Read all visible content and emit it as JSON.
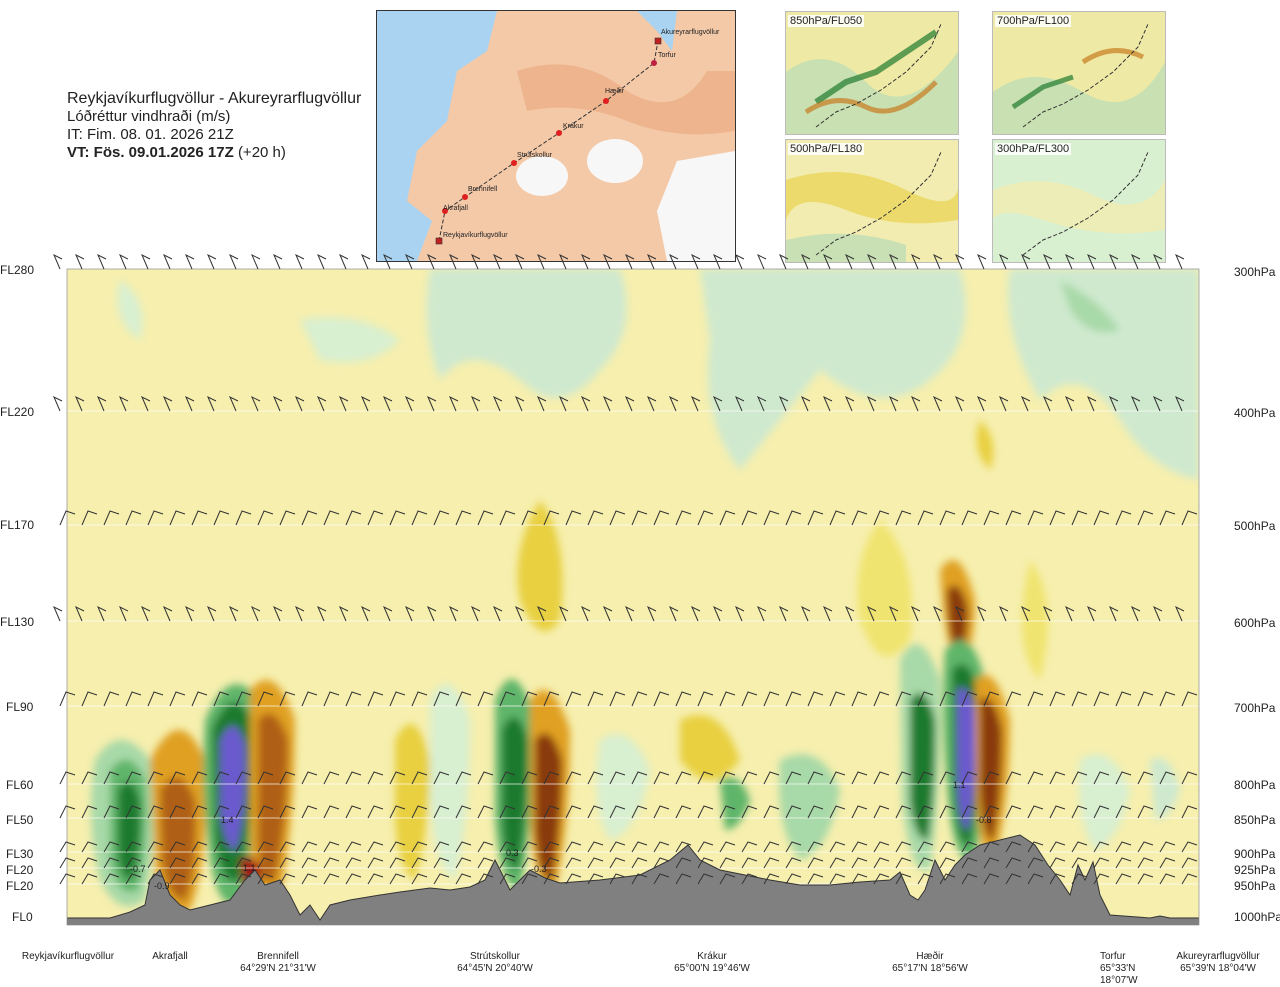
{
  "header": {
    "route": "Reykjavíkurflugvöllur - Akureyrarflugvöllur",
    "subtitle": "Lóðréttur vindhraði (m/s)",
    "issue_time": "IT: Fim. 08. 01. 2026 21Z",
    "valid_time": "VT: Fös. 09.01.2026 17Z",
    "forecast_offset": "(+20 h)"
  },
  "map": {
    "points": [
      "Reykjavíkurflugvöllur",
      "Akrafjall",
      "Brennifell",
      "Strútskollur",
      "Krákur",
      "Hæðir",
      "Torfur",
      "Akureyrarflugvöllur"
    ]
  },
  "thumbnails": [
    {
      "label": "850hPa/FL050"
    },
    {
      "label": "700hPa/FL100"
    },
    {
      "label": "500hPa/FL180"
    },
    {
      "label": "300hPa/FL300"
    }
  ],
  "colors": {
    "strong_down": "#6a5acd",
    "down_dark": "#1f7a2e",
    "down_mid": "#5fb56a",
    "down_light": "#a8d9a8",
    "down_faint": "#d4ecd4",
    "neutral": "#f6efae",
    "up_faint": "#f0e470",
    "up_light": "#e8d040",
    "up_mid": "#e0a020",
    "up_dark": "#b06018",
    "up_strong": "#8a3a10",
    "up_max": "#a01818",
    "terrain": "#808080"
  },
  "chart_data": {
    "type": "heatmap",
    "y_axis_left": [
      "FL280",
      "FL220",
      "FL170",
      "FL130",
      "FL90",
      "FL60",
      "FL50",
      "FL30",
      "FL20",
      "FL20",
      "FL0"
    ],
    "y_axis_right": [
      "300hPa",
      "400hPa",
      "500hPa",
      "600hPa",
      "700hPa",
      "800hPa",
      "850hPa",
      "900hPa",
      "925hPa",
      "950hPa",
      "1000hPa"
    ],
    "pressure_levels_hpa": [
      300,
      400,
      500,
      600,
      700,
      800,
      850,
      900,
      925,
      950,
      1000
    ],
    "x_locations": [
      {
        "name": "Reykjavíkurflugvöllur",
        "coord": ""
      },
      {
        "name": "Akrafjall",
        "coord": ""
      },
      {
        "name": "Brennifell",
        "coord": "64°29'N 21°31'W"
      },
      {
        "name": "Strútskollur",
        "coord": "64°45'N 20°40'W"
      },
      {
        "name": "Krákur",
        "coord": "65°00'N 19°46'W"
      },
      {
        "name": "Hæðir",
        "coord": "65°17'N 18°56'W"
      },
      {
        "name": "Torfur",
        "coord": "65°33'N 18°07'W"
      },
      {
        "name": "Akureyrarflugvöllur",
        "coord": "65°39'N 18°04'W"
      }
    ],
    "annotations": [
      "-0.7",
      "-0.9",
      "1.4",
      "1.1",
      "0.3",
      "-0.3",
      "1.1",
      "-0.8"
    ]
  }
}
